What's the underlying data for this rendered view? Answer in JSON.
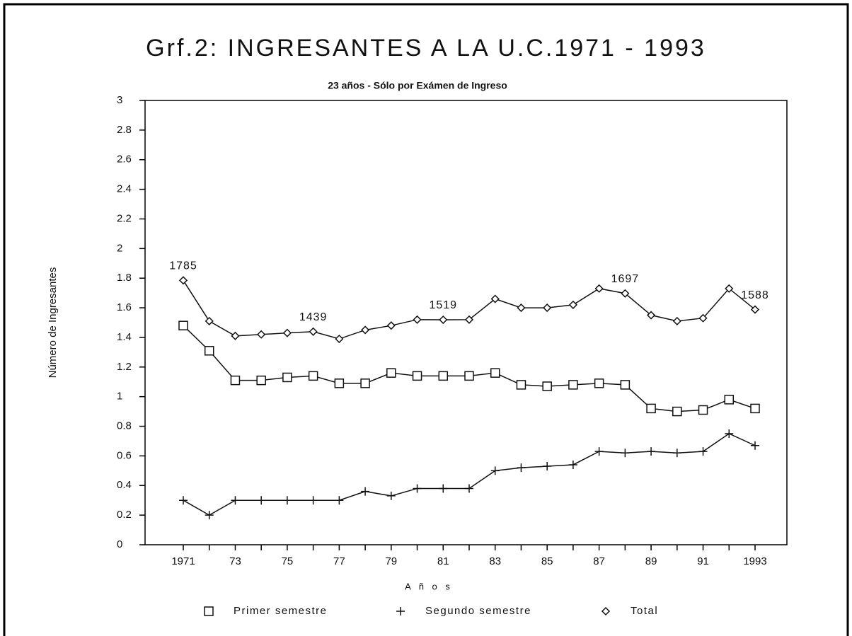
{
  "chart_data": {
    "type": "line",
    "title": "Grf.2: INGRESANTES A LA U.C.1971 - 1993",
    "subtitle": "23 años - Sólo por Exámen de Ingreso",
    "x_label": "A ñ o s",
    "y_label": "Número de Ingresantes",
    "categories": [
      "1971",
      null,
      "73",
      null,
      "75",
      null,
      "77",
      null,
      "79",
      null,
      "81",
      null,
      "83",
      null,
      "85",
      null,
      "87",
      null,
      "89",
      null,
      "91",
      null,
      "1993"
    ],
    "ylim": [
      0,
      3
    ],
    "yticks": [
      0,
      0.2,
      0.4,
      0.6,
      0.8,
      1,
      1.2,
      1.4,
      1.6,
      1.8,
      2,
      2.2,
      2.4,
      2.6,
      2.8,
      3
    ],
    "grid": false,
    "legend": "bottom",
    "series": [
      {
        "name": "Primer semestre",
        "color": "#111111",
        "marker": "square",
        "values": [
          1.48,
          1.31,
          1.11,
          1.11,
          1.13,
          1.14,
          1.09,
          1.09,
          1.16,
          1.14,
          1.14,
          1.14,
          1.16,
          1.08,
          1.07,
          1.08,
          1.09,
          1.08,
          0.92,
          0.9,
          0.91,
          0.98,
          0.92
        ]
      },
      {
        "name": "Segundo semestre",
        "color": "#111111",
        "marker": "plus",
        "values": [
          0.3,
          0.2,
          0.3,
          0.3,
          0.3,
          0.3,
          0.3,
          0.36,
          0.33,
          0.38,
          0.38,
          0.38,
          0.5,
          0.52,
          0.53,
          0.54,
          0.63,
          0.62,
          0.63,
          0.62,
          0.63,
          0.75,
          0.67
        ]
      },
      {
        "name": "Total",
        "color": "#111111",
        "marker": "diamond",
        "values": [
          1.785,
          1.51,
          1.41,
          1.42,
          1.43,
          1.439,
          1.39,
          1.45,
          1.48,
          1.52,
          1.519,
          1.52,
          1.66,
          1.6,
          1.6,
          1.62,
          1.73,
          1.697,
          1.55,
          1.51,
          1.53,
          1.73,
          1.588
        ],
        "value_labels": [
          "1785",
          null,
          null,
          null,
          null,
          "1439",
          null,
          null,
          null,
          null,
          "1519",
          null,
          null,
          null,
          null,
          null,
          null,
          "1697",
          null,
          null,
          null,
          null,
          "1588"
        ]
      }
    ]
  }
}
